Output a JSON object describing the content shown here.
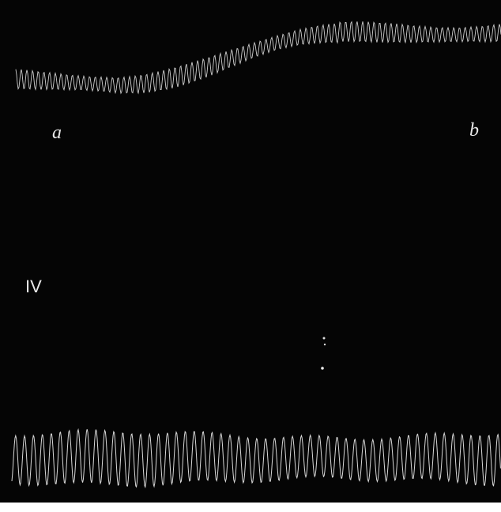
{
  "labels": {
    "left": "a",
    "right": "b",
    "panel": "IV"
  }
}
